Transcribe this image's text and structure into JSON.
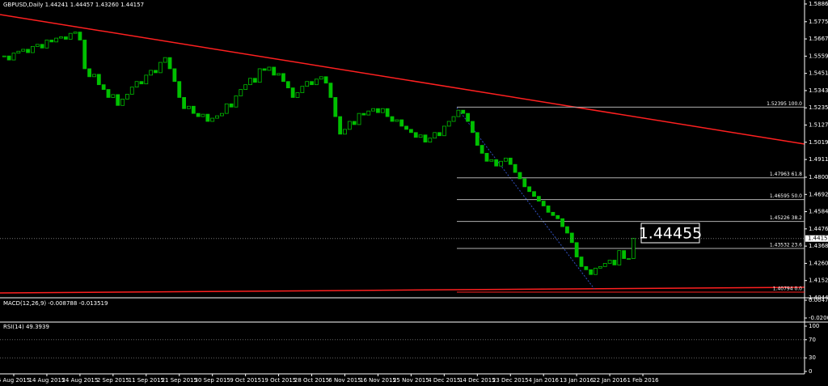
{
  "header": "GBPUSD,Daily  1.44241 1.44457 1.43260 1.44157",
  "chart_data": {
    "type": "candlestick",
    "categories": [
      null,
      null,
      "5 Aug 2015",
      null,
      null,
      null,
      null,
      null,
      null,
      "14 Aug 2015",
      null,
      null,
      null,
      null,
      null,
      null,
      "24 Aug 2015",
      null,
      null,
      null,
      null,
      null,
      null,
      "2 Sep 2015",
      null,
      null,
      null,
      null,
      null,
      null,
      "11 Sep 2015",
      null,
      null,
      null,
      null,
      null,
      null,
      "21 Sep 2015",
      null,
      null,
      null,
      null,
      null,
      null,
      "30 Sep 2015",
      null,
      null,
      null,
      null,
      null,
      null,
      "9 Oct 2015",
      null,
      null,
      null,
      null,
      null,
      null,
      "19 Oct 2015",
      null,
      null,
      null,
      null,
      null,
      null,
      "28 Oct 2015",
      null,
      null,
      null,
      null,
      null,
      null,
      "6 Nov 2015",
      null,
      null,
      null,
      null,
      null,
      null,
      "16 Nov 2015",
      null,
      null,
      null,
      null,
      null,
      null,
      "25 Nov 2015",
      null,
      null,
      null,
      null,
      null,
      null,
      "4 Dec 2015",
      null,
      null,
      null,
      null,
      null,
      null,
      "14 Dec 2015",
      null,
      null,
      null,
      null,
      null,
      null,
      "23 Dec 2015",
      null,
      null,
      null,
      null,
      null,
      null,
      "4 Jan 2016",
      null,
      null,
      null,
      null,
      null,
      null,
      "13 Jan 2016",
      null,
      null,
      null,
      null,
      null,
      null,
      "22 Jan 2016",
      null,
      null,
      null,
      null,
      null,
      null,
      "1 Feb 2016"
    ],
    "values": [
      1.556,
      1.5535,
      1.5578,
      1.559,
      1.5602,
      1.5581,
      1.562,
      1.5633,
      1.561,
      1.566,
      1.5648,
      1.5672,
      1.568,
      1.5665,
      1.5702,
      1.571,
      1.566,
      1.548,
      1.543,
      1.5445,
      1.538,
      1.535,
      1.53,
      1.5318,
      1.525,
      1.529,
      1.532,
      1.5365,
      1.54,
      1.5385,
      1.544,
      1.547,
      1.5455,
      1.552,
      1.555,
      1.548,
      1.54,
      1.53,
      1.523,
      1.5245,
      1.52,
      1.518,
      1.5195,
      1.515,
      1.517,
      1.5185,
      1.52,
      1.526,
      1.524,
      1.531,
      1.535,
      1.538,
      1.542,
      1.5395,
      1.548,
      1.547,
      1.549,
      1.544,
      1.545,
      1.54,
      1.536,
      1.53,
      1.533,
      1.537,
      1.54,
      1.538,
      1.5415,
      1.543,
      1.539,
      1.53,
      1.518,
      1.507,
      1.51,
      1.515,
      1.513,
      1.52,
      1.519,
      1.5215,
      1.523,
      1.5205,
      1.523,
      1.518,
      1.515,
      1.516,
      1.512,
      1.51,
      1.508,
      1.505,
      1.5065,
      1.502,
      1.5045,
      1.508,
      1.506,
      1.512,
      1.515,
      1.518,
      1.522,
      1.52,
      1.515,
      1.508,
      1.5,
      1.495,
      1.49,
      1.491,
      1.487,
      1.49,
      1.492,
      1.488,
      1.483,
      1.479,
      1.474,
      1.471,
      1.468,
      1.465,
      1.462,
      1.458,
      1.456,
      1.454,
      1.449,
      1.445,
      1.439,
      1.43,
      1.424,
      1.422,
      1.419,
      1.423,
      1.424,
      1.426,
      1.428,
      1.425,
      1.434,
      1.429,
      1.429,
      1.4416,
      null,
      null
    ],
    "color": "#00c000",
    "ylim": [
      1.4044,
      1.5911
    ],
    "yticks": [
      {
        "value": 1.5886,
        "label": "1.58860"
      },
      {
        "value": 1.5775,
        "label": "1.57750"
      },
      {
        "value": 1.5667,
        "label": "1.56670"
      },
      {
        "value": 1.5559,
        "label": "1.55590"
      },
      {
        "value": 1.5451,
        "label": "1.54510"
      },
      {
        "value": 1.5343,
        "label": "1.53430"
      },
      {
        "value": 1.5235,
        "label": "1.52350"
      },
      {
        "value": 1.5127,
        "label": "1.51270"
      },
      {
        "value": 1.5019,
        "label": "1.50190"
      },
      {
        "value": 1.4911,
        "label": "1.49110"
      },
      {
        "value": 1.48,
        "label": "1.48000"
      },
      {
        "value": 1.4692,
        "label": "1.46920"
      },
      {
        "value": 1.4584,
        "label": "1.45840"
      },
      {
        "value": 1.4476,
        "label": "1.44760"
      },
      {
        "value": 1.4368,
        "label": "1.43680"
      },
      {
        "value": 1.426,
        "label": "1.42600"
      },
      {
        "value": 1.4152,
        "label": "1.41520"
      },
      {
        "value": 1.4044,
        "label": "1.40440"
      }
    ],
    "fib_levels": [
      {
        "value": 1.52395,
        "label": "1.52395 100.0"
      },
      {
        "value": 1.47963,
        "label": "1.47963 61.8"
      },
      {
        "value": 1.46595,
        "label": "1.46595 50.0"
      },
      {
        "value": 1.45226,
        "label": "1.45226 38.2"
      },
      {
        "value": 1.43532,
        "label": "1.43532 23.6"
      },
      {
        "value": 1.40794,
        "label": "1.40794 0.0"
      }
    ],
    "bid": 1.44157,
    "price_label": "1.44455",
    "macd_label": "MACD(12,26,9) -0.008788 -0.013519",
    "macd_ticks": [
      {
        "value": 0.004702,
        "label": "0.004702"
      },
      {
        "value": -0.020032,
        "label": "-0.020032"
      }
    ],
    "rsi_label": "RSI(14) 49.3939",
    "rsi_ylim": [
      0,
      100
    ],
    "rsi_ticks": [
      100,
      70,
      30,
      0
    ]
  }
}
